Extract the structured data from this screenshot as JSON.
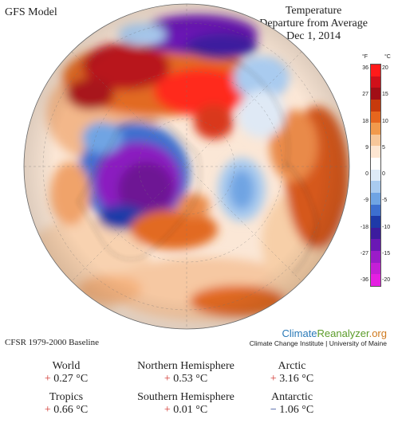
{
  "header": {
    "model": "GFS Model",
    "title_line1": "Temperature",
    "title_line2": "Departure from Average",
    "title_line3": "Dec 1, 2014"
  },
  "legend": {
    "unit_f": "°F",
    "unit_c": "°C",
    "ticks_f": [
      "36",
      "27",
      "18",
      "9",
      "0",
      "-9",
      "-18",
      "-27",
      "-36"
    ],
    "ticks_c": [
      "20",
      "15",
      "10",
      "5",
      "0",
      "-5",
      "-10",
      "-15",
      "-20"
    ],
    "colors": [
      "#ff1a1a",
      "#d0101a",
      "#a10e16",
      "#c73a0c",
      "#e6661e",
      "#f29a4c",
      "#f7c79a",
      "#fde6d2",
      "#ffffff",
      "#ddeaf7",
      "#a9cbef",
      "#6fa4e3",
      "#3d6fcf",
      "#1e3aa8",
      "#3c1c9e",
      "#6a18b4",
      "#9b1cc8",
      "#c41fd6",
      "#e51fe2"
    ]
  },
  "footer": {
    "baseline": "CFSR 1979-2000 Baseline",
    "brand_part1": "Climate",
    "brand_part2": "Reanalyzer",
    "brand_part3": ".org",
    "institute": "Climate Change Institute | University of Maine"
  },
  "stats": [
    {
      "label": "World",
      "sign": "+",
      "value": "0.27 °C"
    },
    {
      "label": "Northern Hemisphere",
      "sign": "+",
      "value": "0.53 °C"
    },
    {
      "label": "Arctic",
      "sign": "+",
      "value": "3.16 °C"
    },
    {
      "label": "Tropics",
      "sign": "+",
      "value": "0.66 °C"
    },
    {
      "label": "Southern Hemisphere",
      "sign": "+",
      "value": "0.01 °C"
    },
    {
      "label": "Antarctic",
      "sign": "−",
      "value": "1.06 °C"
    }
  ]
}
